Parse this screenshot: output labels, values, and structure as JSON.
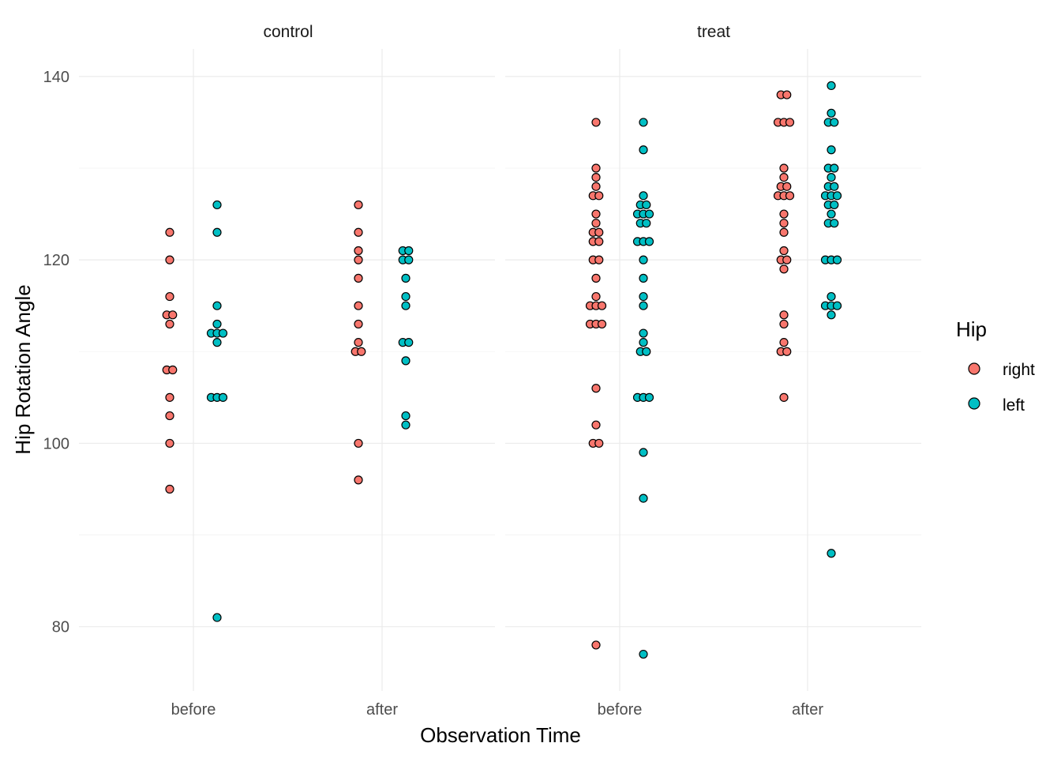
{
  "chart_data": {
    "type": "scatter",
    "subtype": "dotplot (binned, stacked horizontally)",
    "xlabel": "Observation Time",
    "ylabel": "Hip Rotation Angle",
    "ylim": [
      73,
      143
    ],
    "yticks": [
      80,
      100,
      120,
      140
    ],
    "categories": [
      "before",
      "after"
    ],
    "facets": [
      "control",
      "treat"
    ],
    "legend": {
      "title": "Hip",
      "position": "right",
      "entries": [
        {
          "label": "right",
          "color": "#F8766D"
        },
        {
          "label": "left",
          "color": "#00BFC4"
        }
      ]
    },
    "grid": true,
    "panels": [
      {
        "facet": "control",
        "groups": [
          {
            "category": "before",
            "series": "right",
            "bins": [
              [
                123,
                1
              ],
              [
                120,
                1
              ],
              [
                116,
                1
              ],
              [
                114,
                2
              ],
              [
                113,
                1
              ],
              [
                108,
                2
              ],
              [
                105,
                1
              ],
              [
                103,
                1
              ],
              [
                100,
                1
              ],
              [
                95,
                1
              ]
            ]
          },
          {
            "category": "before",
            "series": "left",
            "bins": [
              [
                126,
                1
              ],
              [
                123,
                1
              ],
              [
                115,
                1
              ],
              [
                113,
                1
              ],
              [
                112,
                3
              ],
              [
                111,
                1
              ],
              [
                105,
                3
              ],
              [
                81,
                1
              ]
            ]
          },
          {
            "category": "after",
            "series": "right",
            "bins": [
              [
                126,
                1
              ],
              [
                123,
                1
              ],
              [
                121,
                1
              ],
              [
                120,
                1
              ],
              [
                118,
                1
              ],
              [
                115,
                1
              ],
              [
                113,
                1
              ],
              [
                111,
                1
              ],
              [
                110,
                2
              ],
              [
                100,
                1
              ],
              [
                96,
                1
              ]
            ]
          },
          {
            "category": "after",
            "series": "left",
            "bins": [
              [
                121,
                2
              ],
              [
                120,
                2
              ],
              [
                118,
                1
              ],
              [
                116,
                1
              ],
              [
                115,
                1
              ],
              [
                111,
                2
              ],
              [
                109,
                1
              ],
              [
                103,
                1
              ],
              [
                102,
                1
              ]
            ]
          }
        ]
      },
      {
        "facet": "treat",
        "groups": [
          {
            "category": "before",
            "series": "right",
            "bins": [
              [
                135,
                1
              ],
              [
                130,
                1
              ],
              [
                129,
                1
              ],
              [
                128,
                1
              ],
              [
                127,
                2
              ],
              [
                125,
                1
              ],
              [
                124,
                1
              ],
              [
                123,
                2
              ],
              [
                122,
                2
              ],
              [
                120,
                2
              ],
              [
                118,
                1
              ],
              [
                116,
                1
              ],
              [
                115,
                3
              ],
              [
                113,
                3
              ],
              [
                106,
                1
              ],
              [
                102,
                1
              ],
              [
                100,
                2
              ],
              [
                78,
                1
              ]
            ]
          },
          {
            "category": "before",
            "series": "left",
            "bins": [
              [
                135,
                1
              ],
              [
                132,
                1
              ],
              [
                127,
                1
              ],
              [
                126,
                2
              ],
              [
                125,
                3
              ],
              [
                124,
                2
              ],
              [
                122,
                3
              ],
              [
                120,
                1
              ],
              [
                118,
                1
              ],
              [
                116,
                1
              ],
              [
                115,
                1
              ],
              [
                112,
                1
              ],
              [
                111,
                1
              ],
              [
                110,
                2
              ],
              [
                105,
                3
              ],
              [
                99,
                1
              ],
              [
                94,
                1
              ],
              [
                77,
                1
              ]
            ]
          },
          {
            "category": "after",
            "series": "right",
            "bins": [
              [
                138,
                2
              ],
              [
                135,
                3
              ],
              [
                130,
                1
              ],
              [
                129,
                1
              ],
              [
                128,
                2
              ],
              [
                127,
                3
              ],
              [
                125,
                1
              ],
              [
                124,
                1
              ],
              [
                123,
                1
              ],
              [
                121,
                1
              ],
              [
                120,
                2
              ],
              [
                119,
                1
              ],
              [
                114,
                1
              ],
              [
                113,
                1
              ],
              [
                111,
                1
              ],
              [
                110,
                2
              ],
              [
                105,
                1
              ]
            ]
          },
          {
            "category": "after",
            "series": "left",
            "bins": [
              [
                139,
                1
              ],
              [
                136,
                1
              ],
              [
                135,
                2
              ],
              [
                132,
                1
              ],
              [
                130,
                2
              ],
              [
                129,
                1
              ],
              [
                128,
                2
              ],
              [
                127,
                3
              ],
              [
                126,
                2
              ],
              [
                125,
                1
              ],
              [
                124,
                2
              ],
              [
                120,
                3
              ],
              [
                116,
                1
              ],
              [
                115,
                3
              ],
              [
                114,
                1
              ],
              [
                88,
                1
              ]
            ]
          }
        ]
      }
    ]
  }
}
